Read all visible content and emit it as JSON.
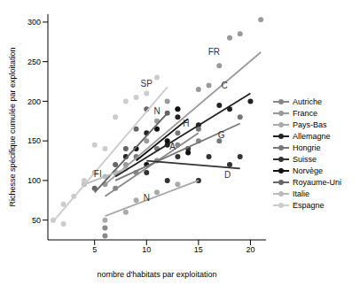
{
  "chart_data": {
    "type": "scatter",
    "x_label": "nombre d'habitats par exploitation",
    "y_label": "Richesse spécifique cumulée par exploitation",
    "xlim": [
      0.5,
      21.5
    ],
    "xticks": [
      5,
      10,
      15,
      20
    ],
    "ylim": [
      25,
      310
    ],
    "yticks": [
      50,
      100,
      150,
      200,
      250,
      300
    ],
    "grid": false,
    "legend": "right",
    "marker": "circle",
    "series": [
      {
        "name": "Autriche",
        "color": "#888888",
        "x": [
          6,
          6,
          7,
          9,
          11,
          13,
          15
        ],
        "values": [
          40,
          30,
          90,
          110,
          125,
          145,
          150
        ],
        "trend": {
          "x": [
            6,
            15
          ],
          "values": [
            80,
            160
          ]
        }
      },
      {
        "name": "France",
        "color": "#9a9a9a",
        "x": [
          6,
          8,
          10,
          11,
          12,
          13,
          15,
          16,
          17,
          18,
          19,
          21
        ],
        "values": [
          95,
          120,
          150,
          175,
          200,
          190,
          215,
          220,
          245,
          280,
          285,
          303
        ],
        "trend": {
          "x": [
            6,
            21
          ],
          "values": [
            95,
            262
          ]
        }
      },
      {
        "name": "Pays-Bas",
        "color": "#aaaaaa",
        "x": [
          6,
          8,
          9,
          11,
          13,
          15
        ],
        "values": [
          50,
          60,
          75,
          85,
          95,
          100
        ],
        "trend": {
          "x": [
            6,
            15
          ],
          "values": [
            55,
            100
          ]
        }
      },
      {
        "name": "Allemagne",
        "color": "#222222",
        "x": [
          8,
          10,
          12,
          13,
          15,
          17,
          18,
          20
        ],
        "values": [
          130,
          160,
          145,
          180,
          170,
          195,
          190,
          200
        ],
        "trend": {
          "x": [
            7,
            20
          ],
          "values": [
            105,
            210
          ]
        }
      },
      {
        "name": "Hongrie",
        "color": "#777777",
        "x": [
          7,
          9,
          11,
          13,
          15,
          17,
          19
        ],
        "values": [
          110,
          130,
          140,
          160,
          165,
          150,
          180
        ],
        "trend": {
          "x": [
            7,
            19
          ],
          "values": [
            100,
            172
          ]
        }
      },
      {
        "name": "Suisse",
        "color": "#333333",
        "x": [
          10,
          12,
          13,
          14,
          15,
          16,
          18,
          19
        ],
        "values": [
          110,
          100,
          130,
          140,
          100,
          130,
          120,
          130
        ],
        "trend": {
          "x": [
            10,
            19
          ],
          "values": [
            125,
            115
          ]
        }
      },
      {
        "name": "Norvège",
        "color": "#111111",
        "x": [
          9,
          10,
          11,
          12,
          13,
          14
        ],
        "values": [
          140,
          120,
          165,
          150,
          190,
          135
        ],
        "trend": {
          "x": [
            9,
            14
          ],
          "values": [
            125,
            178
          ]
        }
      },
      {
        "name": "Royaume-Uni",
        "color": "#666666",
        "x": [
          5,
          7,
          8,
          9,
          10,
          12
        ],
        "values": [
          90,
          120,
          140,
          165,
          190,
          185
        ],
        "trend": {
          "x": [
            5,
            12
          ],
          "values": [
            85,
            185
          ]
        }
      },
      {
        "name": "Italie",
        "color": "#bbbbbb",
        "x": [
          4,
          5,
          6,
          7,
          8
        ],
        "values": [
          95,
          110,
          105,
          110,
          115
        ],
        "trend": {
          "x": [
            4,
            8
          ],
          "values": [
            95,
            115
          ]
        }
      },
      {
        "name": "Espagne",
        "color": "#cccccc",
        "x": [
          1,
          2,
          2,
          3,
          4,
          5,
          6,
          7,
          8,
          9,
          10,
          11
        ],
        "values": [
          50,
          45,
          70,
          80,
          100,
          145,
          140,
          180,
          200,
          205,
          210,
          230
        ],
        "trend": {
          "x": [
            1,
            12
          ],
          "values": [
            48,
            218
          ]
        }
      }
    ],
    "annotations": [
      {
        "text": "FR",
        "x": 16.5,
        "y": 262
      },
      {
        "text": "SP",
        "x": 10,
        "y": 222
      },
      {
        "text": "C",
        "x": 17.5,
        "y": 220
      },
      {
        "text": "N",
        "x": 11,
        "y": 188
      },
      {
        "text": "H",
        "x": 13.8,
        "y": 172
      },
      {
        "text": "G",
        "x": 17.2,
        "y": 157
      },
      {
        "text": "A",
        "x": 12.5,
        "y": 143
      },
      {
        "text": "D",
        "x": 17.8,
        "y": 107
      },
      {
        "text": "FI",
        "x": 5.3,
        "y": 108
      },
      {
        "text": "N",
        "x": 10,
        "y": 78
      }
    ]
  }
}
